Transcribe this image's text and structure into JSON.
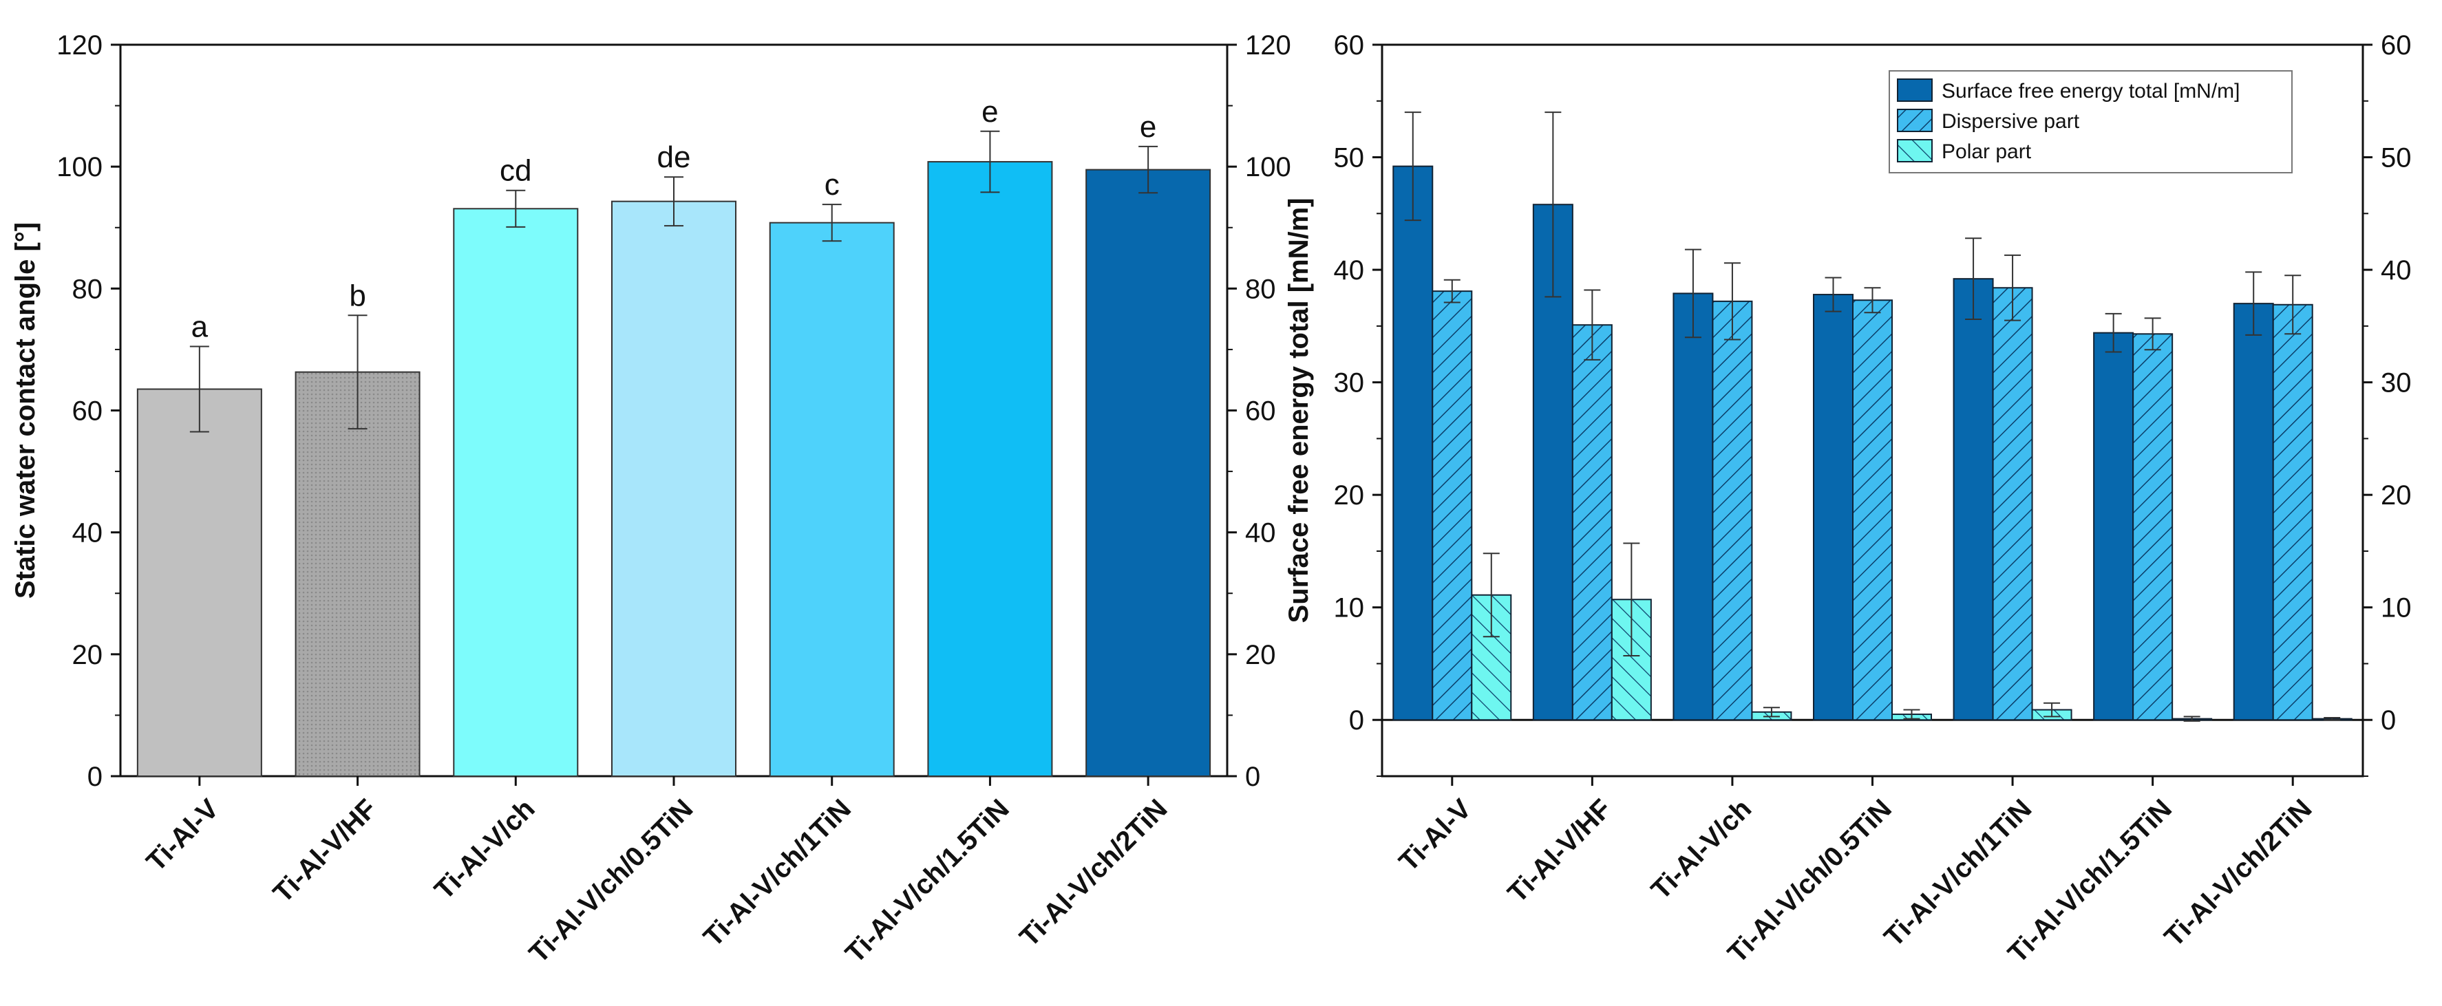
{
  "chart_data": [
    {
      "type": "bar",
      "title": "",
      "xlabel": "",
      "ylabel": "Static water contact angle [°]",
      "ylim": [
        0,
        120
      ],
      "yticks": [
        0,
        20,
        40,
        60,
        80,
        100,
        120
      ],
      "categories": [
        "Ti-Al-V",
        "Ti-Al-V/HF",
        "Ti-Al-V/ch",
        "Ti-Al-V/ch/0.5TiN",
        "Ti-Al-V/ch/1TiN",
        "Ti-Al-V/ch/1.5TiN",
        "Ti-Al-V/ch/2TiN"
      ],
      "values": [
        63.5,
        66.3,
        93.1,
        94.3,
        90.8,
        100.8,
        99.5
      ],
      "errors": [
        7.0,
        9.3,
        3.0,
        4.0,
        3.0,
        5.0,
        3.8
      ],
      "significance_labels": [
        "a",
        "b",
        "cd",
        "de",
        "c",
        "e",
        "e"
      ],
      "bar_colors": [
        "#c0c0c0",
        "#a8a8a8",
        "#7dfcfc",
        "#a8e6fb",
        "#4ed2fb",
        "#10bef5",
        "#0768ad"
      ]
    },
    {
      "type": "bar",
      "title": "",
      "xlabel": "",
      "ylabel": "Surface free energy total [mN/m]",
      "ylim": [
        -5,
        60
      ],
      "yticks": [
        0,
        10,
        20,
        30,
        40,
        50,
        60
      ],
      "categories": [
        "Ti-Al-V",
        "Ti-Al-V/HF",
        "Ti-Al-V/ch",
        "Ti-Al-V/ch/0.5TiN",
        "Ti-Al-V/ch/1TiN",
        "Ti-Al-V/ch/1.5TiN",
        "Ti-Al-V/ch/2TiN"
      ],
      "series": [
        {
          "name": "Surface free energy total [mN/m]",
          "color": "#0768ad",
          "pattern": "solid",
          "values": [
            49.2,
            45.8,
            37.9,
            37.8,
            39.2,
            34.4,
            37.0
          ],
          "errors": [
            4.8,
            8.2,
            3.9,
            1.5,
            3.6,
            1.7,
            2.8
          ]
        },
        {
          "name": "Dispersive part",
          "color": "#3fbcf0",
          "pattern": "hatch-right",
          "values": [
            38.1,
            35.1,
            37.2,
            37.3,
            38.4,
            34.3,
            36.9
          ],
          "errors": [
            1.0,
            3.1,
            3.4,
            1.1,
            2.9,
            1.4,
            2.6
          ]
        },
        {
          "name": "Polar part",
          "color": "#6ef6f0",
          "pattern": "hatch-left",
          "values": [
            11.1,
            10.7,
            0.7,
            0.5,
            0.9,
            0.1,
            0.1
          ],
          "errors": [
            3.7,
            5.0,
            0.4,
            0.4,
            0.6,
            0.2,
            0.1
          ]
        }
      ],
      "legend_position": "top-right"
    }
  ]
}
